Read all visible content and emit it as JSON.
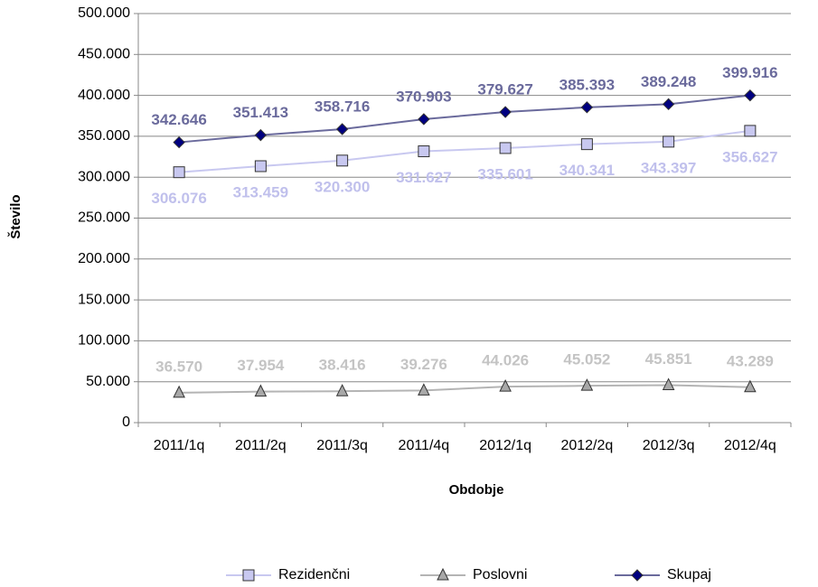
{
  "chart_data": {
    "type": "line",
    "x_label": "Obdobje",
    "y_label": "Število",
    "categories": [
      "2011/1q",
      "2011/2q",
      "2011/3q",
      "2011/4q",
      "2012/1q",
      "2012/2q",
      "2012/3q",
      "2012/4q"
    ],
    "series": [
      {
        "name": "Rezidenčni",
        "color": "#c8c8f0",
        "marker": "square",
        "values": [
          306076,
          313459,
          320300,
          331627,
          335601,
          340341,
          343397,
          356627
        ],
        "value_labels": [
          "306.076",
          "313.459",
          "320.300",
          "331.627",
          "335.601",
          "340.341",
          "343.397",
          "356.627"
        ]
      },
      {
        "name": "Poslovni",
        "color": "#b4b4b4",
        "marker": "triangle",
        "values": [
          36570,
          37954,
          38416,
          39276,
          44026,
          45052,
          45851,
          43289
        ],
        "value_labels": [
          "36.570",
          "37.954",
          "38.416",
          "39.276",
          "44.026",
          "45.052",
          "45.851",
          "43.289"
        ]
      },
      {
        "name": "Skupaj",
        "color": "#6a6a9c",
        "marker": "diamond",
        "values": [
          342646,
          351413,
          358716,
          370903,
          379627,
          385393,
          389248,
          399916
        ],
        "value_labels": [
          "342.646",
          "351.413",
          "358.716",
          "370.903",
          "379.627",
          "385.393",
          "389.248",
          "399.916"
        ]
      }
    ],
    "ylim": [
      0,
      500000
    ],
    "yticks": [
      0,
      {
        "value": 50000,
        "label": "50.000"
      },
      {
        "value": 100000,
        "label": "100.000"
      },
      {
        "value": 150000,
        "label": "150.000"
      },
      {
        "value": 200000,
        "label": "200.000"
      },
      {
        "value": 250000,
        "label": "250.000"
      },
      {
        "value": 300000,
        "label": "300.000"
      },
      {
        "value": 350000,
        "label": "350.000"
      },
      {
        "value": 400000,
        "label": "400.000"
      },
      {
        "value": 450000,
        "label": "450.000"
      },
      {
        "value": 500000,
        "label": "500.000"
      }
    ],
    "grid": true,
    "legend": "bottom"
  }
}
